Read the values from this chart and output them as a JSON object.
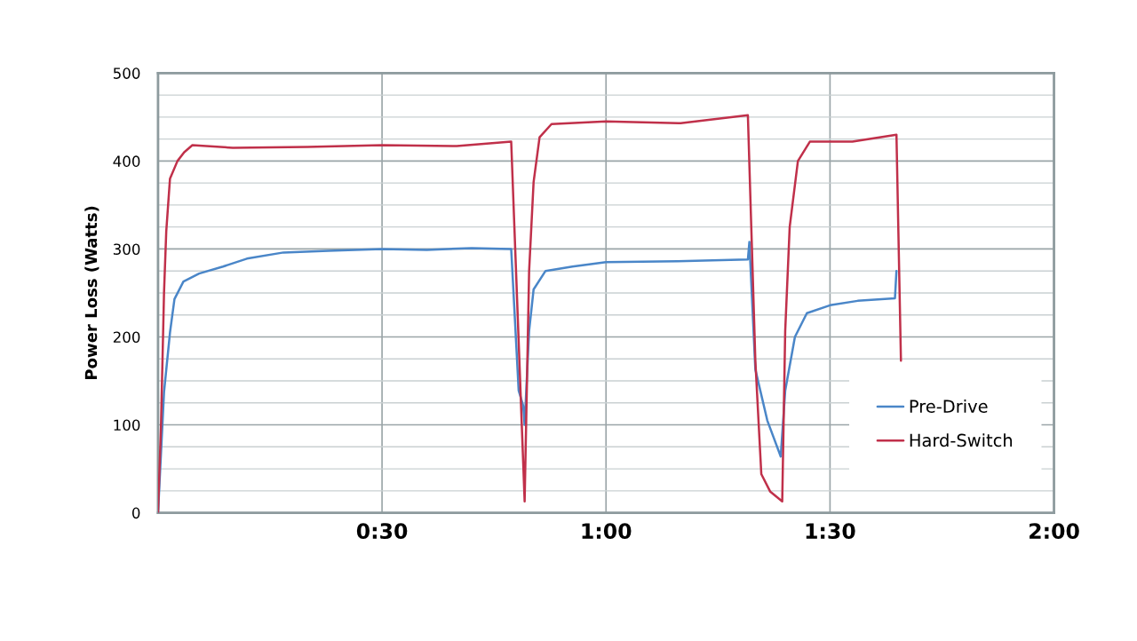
{
  "chart_data": {
    "type": "line",
    "ylabel": "Power Loss (Watts)",
    "xlim": [
      0,
      120
    ],
    "xticks": [
      {
        "value": 30,
        "label": "0:30"
      },
      {
        "value": 60,
        "label": "1:00"
      },
      {
        "value": 90,
        "label": "1:30"
      },
      {
        "value": 120,
        "label": "2:00"
      }
    ],
    "ylim": [
      0,
      500
    ],
    "yticks": [
      0,
      {
        "value": 25,
        "label": null
      },
      {
        "value": 50,
        "label": null
      },
      {
        "value": 75,
        "label": null
      },
      100,
      {
        "value": 125,
        "label": null
      },
      {
        "value": 150,
        "label": null
      },
      {
        "value": 175,
        "label": null
      },
      200,
      {
        "value": 225,
        "label": null
      },
      {
        "value": 250,
        "label": null
      },
      {
        "value": 275,
        "label": null
      },
      300,
      {
        "value": 325,
        "label": null
      },
      {
        "value": 350,
        "label": null
      },
      {
        "value": 375,
        "label": null
      },
      400,
      {
        "value": 425,
        "label": null
      },
      {
        "value": 450,
        "label": null
      },
      {
        "value": 475,
        "label": null
      },
      500
    ],
    "grid": true,
    "legend": "bottom right",
    "series": [
      {
        "name": "Pre-Drive",
        "color": "#4a86c8",
        "x": [
          0,
          0.8,
          1.6,
          2.2,
          3.4,
          5.5,
          8.7,
          11.9,
          16.8,
          22.8,
          30,
          36,
          42,
          47.3,
          48.3,
          48.9,
          49.1,
          49.7,
          50.3,
          51.9,
          55.5,
          60,
          69.6,
          79.0,
          79.2,
          80.0,
          81.6,
          83.4,
          84.0,
          85.3,
          86.9,
          90,
          93.7,
          98.7,
          98.9
        ],
        "values": [
          0,
          137,
          205,
          243,
          263,
          272,
          280,
          289,
          296,
          298,
          300,
          299,
          301,
          300,
          139,
          122,
          100,
          207,
          254,
          275,
          280,
          285,
          286,
          288,
          308,
          163,
          105,
          64,
          139,
          200,
          227,
          236,
          241,
          244,
          275
        ]
      },
      {
        "name": "Hard-Switch",
        "color": "#c0304a",
        "x": [
          0,
          0.4,
          0.8,
          1.1,
          1.6,
          2.6,
          3.5,
          4.6,
          10,
          20,
          30,
          40,
          47.3,
          49.1,
          49.7,
          50.3,
          51.1,
          52.7,
          60,
          70,
          79.0,
          80.0,
          80.8,
          82.0,
          83.6,
          84.0,
          84.6,
          85.7,
          87.3,
          93,
          98.9,
          99.5
        ],
        "values": [
          0,
          100,
          250,
          320,
          380,
          400,
          410,
          418,
          415,
          416,
          418,
          417,
          422,
          13,
          275,
          376,
          427,
          442,
          445,
          443,
          452,
          173,
          44,
          24,
          13,
          207,
          325,
          400,
          422,
          422,
          430,
          173
        ]
      }
    ]
  }
}
